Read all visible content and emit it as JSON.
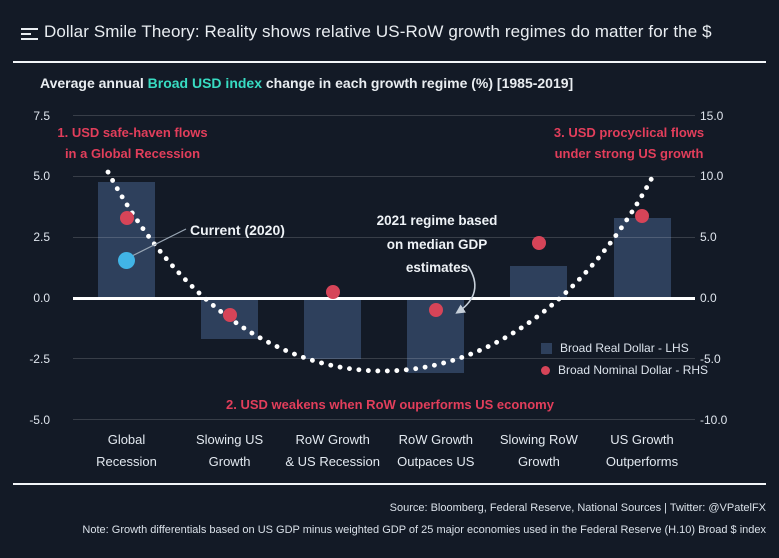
{
  "header": {
    "title": "Dollar Smile Theory: Reality shows relative US-RoW growth regimes do matter for the $"
  },
  "subtitle": {
    "prefix": "Average annual ",
    "highlight": "Broad USD index",
    "suffix": " change in each growth regime (%) [1985-2019]"
  },
  "chart_data": {
    "type": "bar",
    "title": "Average annual Broad USD index change in each growth regime (%) [1985-2019]",
    "categories": [
      [
        "Global",
        "Recession"
      ],
      [
        "Slowing US",
        "Growth"
      ],
      [
        "RoW Growth",
        "& US Recession"
      ],
      [
        "RoW Growth",
        "Outpaces US"
      ],
      [
        "Slowing RoW",
        "Growth"
      ],
      [
        "US Growth",
        "Outperforms"
      ]
    ],
    "series": [
      {
        "name": "Broad Real Dollar - LHS",
        "type": "bar",
        "axis": "left",
        "values": [
          4.75,
          -1.7,
          -2.5,
          -3.1,
          1.3,
          3.3
        ]
      },
      {
        "name": "Broad Nominal Dollar - RHS",
        "type": "scatter",
        "axis": "right",
        "values": [
          6.6,
          -1.4,
          0.5,
          -1.0,
          4.5,
          6.7
        ]
      }
    ],
    "current_2020": {
      "category": "Global Recession",
      "axis": "right",
      "value": 3.1,
      "label": "Current (2020)"
    },
    "left_axis": {
      "values": [
        7.5,
        5.0,
        2.5,
        0.0,
        -2.5,
        -5.0
      ],
      "tick_labels": [
        "7.5",
        "5.0",
        "2.5",
        "0.0",
        "-2.5",
        "-5.0"
      ],
      "range": [
        -5.0,
        7.5
      ]
    },
    "right_axis": {
      "values": [
        15.0,
        10.0,
        5.0,
        0.0,
        -5.0,
        -10.0
      ],
      "tick_labels": [
        "15.0",
        "10.0",
        "5.0",
        "0.0",
        "-5.0",
        "-10.0"
      ],
      "range": [
        -10.0,
        15.0
      ]
    },
    "grid": true,
    "legend_position": "inside-bottom-right",
    "smile_curve": "schematic dotted smile from ~5 LHS at Global Recession down to ~-3 LHS mid-regimes back up to ~5 LHS at US Growth Outperforms"
  },
  "annotations": {
    "regime1": {
      "line1": "1. USD safe-haven flows",
      "line2": "in a Global Recession"
    },
    "regime2": {
      "text": "2. USD weakens when RoW ouperforms US economy"
    },
    "regime3": {
      "line1": "3. USD procyclical flows",
      "line2": "under strong US growth"
    },
    "estimate": {
      "line1": "2021 regime based",
      "line2": "on median GDP",
      "line3": "estimates"
    },
    "current_label": "Current (2020)"
  },
  "legend": {
    "bar_label": "Broad Real Dollar - LHS",
    "dot_label": "Broad Nominal Dollar - RHS"
  },
  "footer": {
    "source": "Source: Bloomberg, Federal Reserve, National Sources  |  Twitter: @VPatelFX",
    "note": "Note: Growth differentials based on US GDP minus weighted GDP of 25 major economies used in the Federal Reserve (H.10) Broad $ index"
  },
  "colors": {
    "background": "#131a26",
    "bar": "#2e405c",
    "nominal_dot": "#d64458",
    "current_dot": "#41b4e6",
    "annotation_red": "#e23e5b",
    "highlight_teal": "#38dcc2",
    "zero_line": "#ffffff",
    "curve_dotted": "#ffffff"
  }
}
